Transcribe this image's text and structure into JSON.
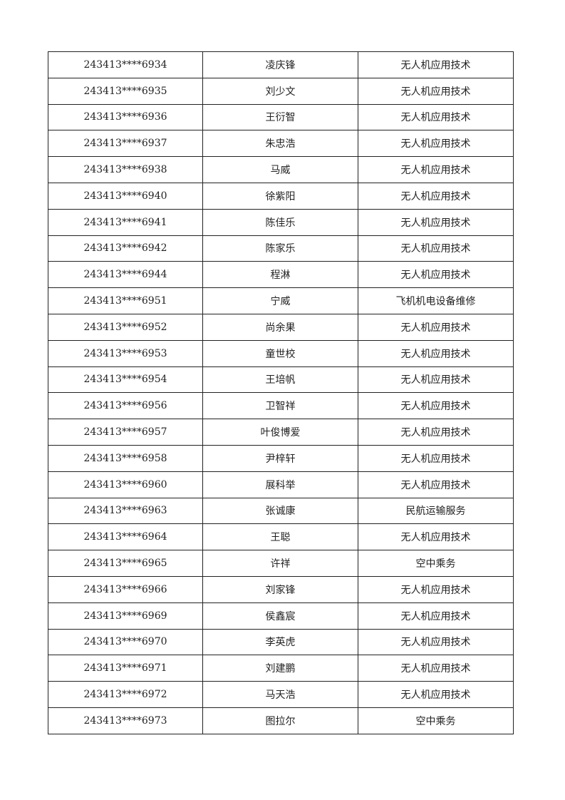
{
  "table": {
    "rows": [
      [
        "243413****6934",
        "凌庆锋",
        "无人机应用技术"
      ],
      [
        "243413****6935",
        "刘少文",
        "无人机应用技术"
      ],
      [
        "243413****6936",
        "王衍智",
        "无人机应用技术"
      ],
      [
        "243413****6937",
        "朱忠浩",
        "无人机应用技术"
      ],
      [
        "243413****6938",
        "马威",
        "无人机应用技术"
      ],
      [
        "243413****6940",
        "徐紫阳",
        "无人机应用技术"
      ],
      [
        "243413****6941",
        "陈佳乐",
        "无人机应用技术"
      ],
      [
        "243413****6942",
        "陈家乐",
        "无人机应用技术"
      ],
      [
        "243413****6944",
        "程淋",
        "无人机应用技术"
      ],
      [
        "243413****6951",
        "宁威",
        "飞机机电设备维修"
      ],
      [
        "243413****6952",
        "尚余果",
        "无人机应用技术"
      ],
      [
        "243413****6953",
        "童世校",
        "无人机应用技术"
      ],
      [
        "243413****6954",
        "王培帆",
        "无人机应用技术"
      ],
      [
        "243413****6956",
        "卫智祥",
        "无人机应用技术"
      ],
      [
        "243413****6957",
        "叶俊博爱",
        "无人机应用技术"
      ],
      [
        "243413****6958",
        "尹梓轩",
        "无人机应用技术"
      ],
      [
        "243413****6960",
        "展科举",
        "无人机应用技术"
      ],
      [
        "243413****6963",
        "张诚康",
        "民航运输服务"
      ],
      [
        "243413****6964",
        "王聪",
        "无人机应用技术"
      ],
      [
        "243413****6965",
        "许祥",
        "空中乘务"
      ],
      [
        "243413****6966",
        "刘家锋",
        "无人机应用技术"
      ],
      [
        "243413****6969",
        "侯鑫宸",
        "无人机应用技术"
      ],
      [
        "243413****6970",
        "李英虎",
        "无人机应用技术"
      ],
      [
        "243413****6971",
        "刘建鹏",
        "无人机应用技术"
      ],
      [
        "243413****6972",
        "马天浩",
        "无人机应用技术"
      ],
      [
        "243413****6973",
        "图拉尔",
        "空中乘务"
      ]
    ]
  }
}
